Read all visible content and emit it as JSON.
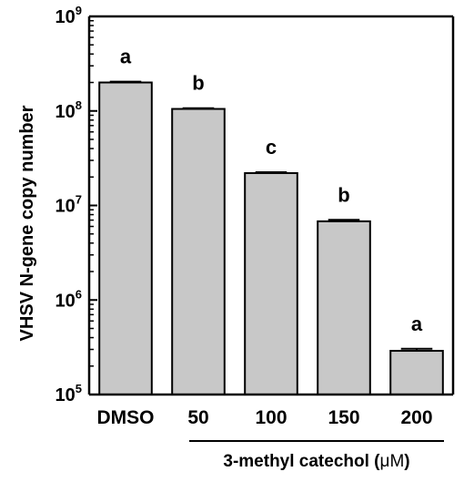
{
  "chart_data": {
    "type": "bar",
    "categories": [
      "DMSO",
      "50",
      "100",
      "150",
      "200"
    ],
    "values": [
      200000000,
      105000000,
      22000000,
      6800000,
      290000
    ],
    "errors": [
      4000000,
      2000000,
      500000,
      250000,
      15000
    ],
    "significance": [
      "a",
      "b",
      "c",
      "b",
      "a"
    ],
    "ylabel": "VHSV N-gene copy number",
    "group_label": "3-methyl catechol (",
    "group_label_unit": "μM",
    "group_label_close": ")",
    "y_scale": "log",
    "ylim": [
      100000,
      1000000000
    ],
    "y_ticks": [
      {
        "base": "10",
        "exp": "5"
      },
      {
        "base": "10",
        "exp": "6"
      },
      {
        "base": "10",
        "exp": "7"
      },
      {
        "base": "10",
        "exp": "8"
      },
      {
        "base": "10",
        "exp": "9"
      }
    ],
    "bar_color": "#c8c8c8",
    "grid": false
  }
}
